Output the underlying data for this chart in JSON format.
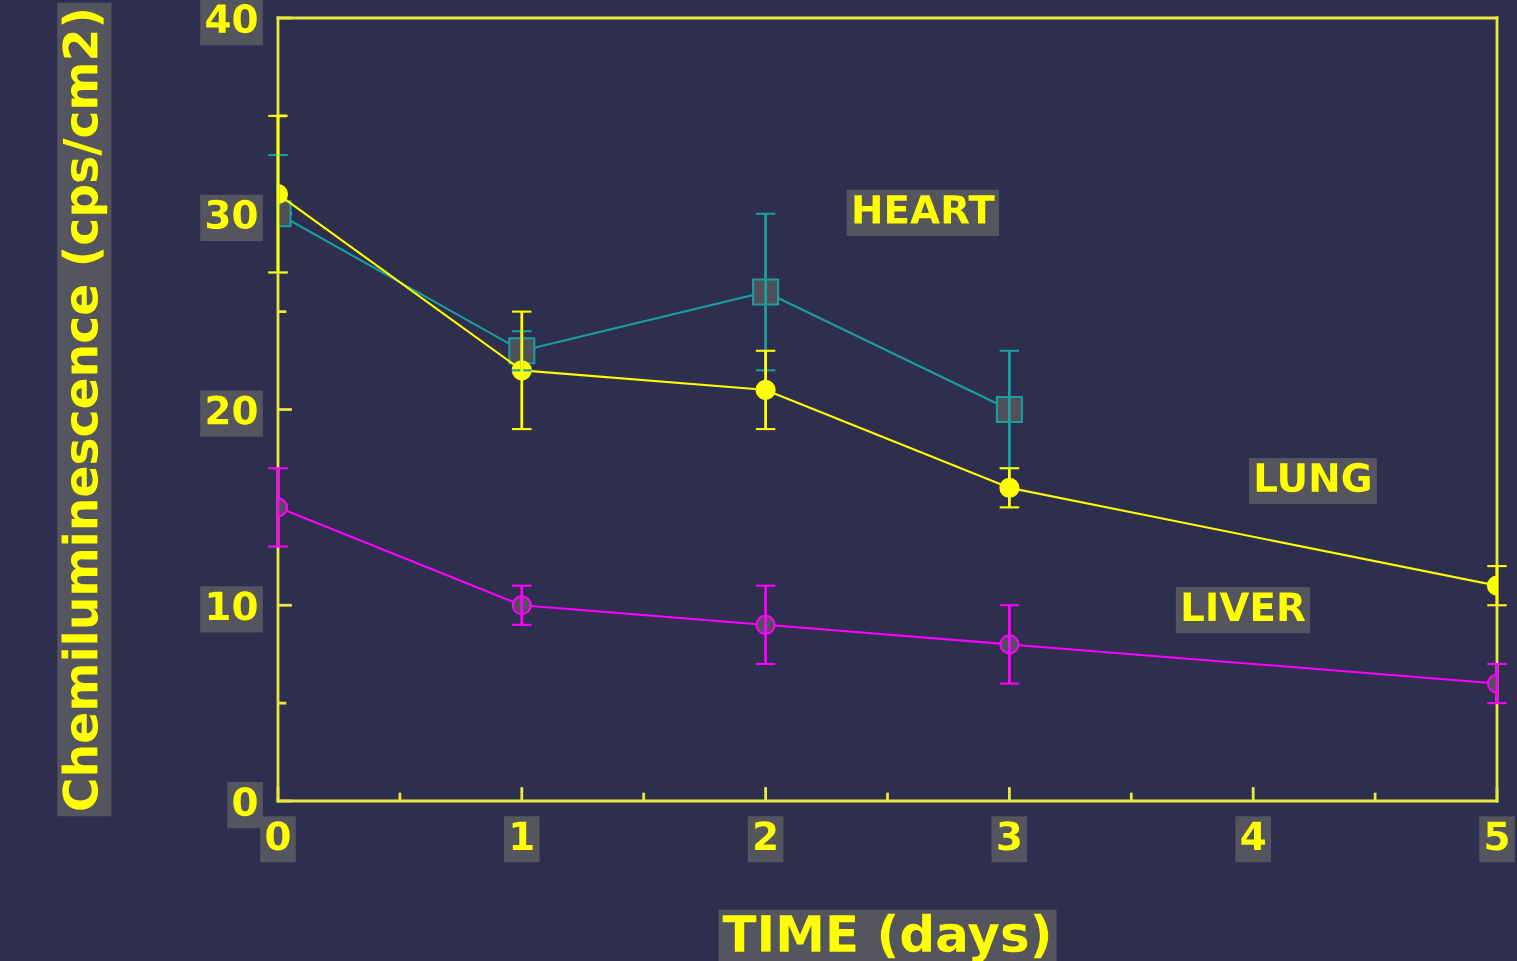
{
  "chart_data": {
    "type": "line",
    "xlabel": "TIME (days)",
    "ylabel": "Chemiluminescence (cps/cm2)",
    "x": [
      0,
      1,
      2,
      3,
      5
    ],
    "series": [
      {
        "name": "HEART",
        "color": "#1a9e9e",
        "marker": "square",
        "x": [
          0,
          1,
          2,
          3
        ],
        "values": [
          30,
          23,
          26,
          20
        ],
        "errors": [
          3,
          1,
          4,
          3
        ]
      },
      {
        "name": "LUNG",
        "color": "#ffff00",
        "marker": "circle",
        "values": [
          31,
          22,
          21,
          16,
          11
        ],
        "errors": [
          4,
          3,
          2,
          1,
          1
        ]
      },
      {
        "name": "LIVER",
        "color": "#ff00ff",
        "marker": "circle",
        "values": [
          15,
          10,
          9,
          8,
          6
        ],
        "errors": [
          2,
          1,
          2,
          2,
          1
        ]
      }
    ],
    "xlim": [
      0,
      5
    ],
    "xticks": [
      0,
      1,
      2,
      3,
      4,
      5
    ],
    "ylim": [
      0,
      40
    ],
    "yticks": [
      0,
      10,
      20,
      30,
      40
    ],
    "grid": false,
    "legend": false,
    "line_style": "solid"
  }
}
